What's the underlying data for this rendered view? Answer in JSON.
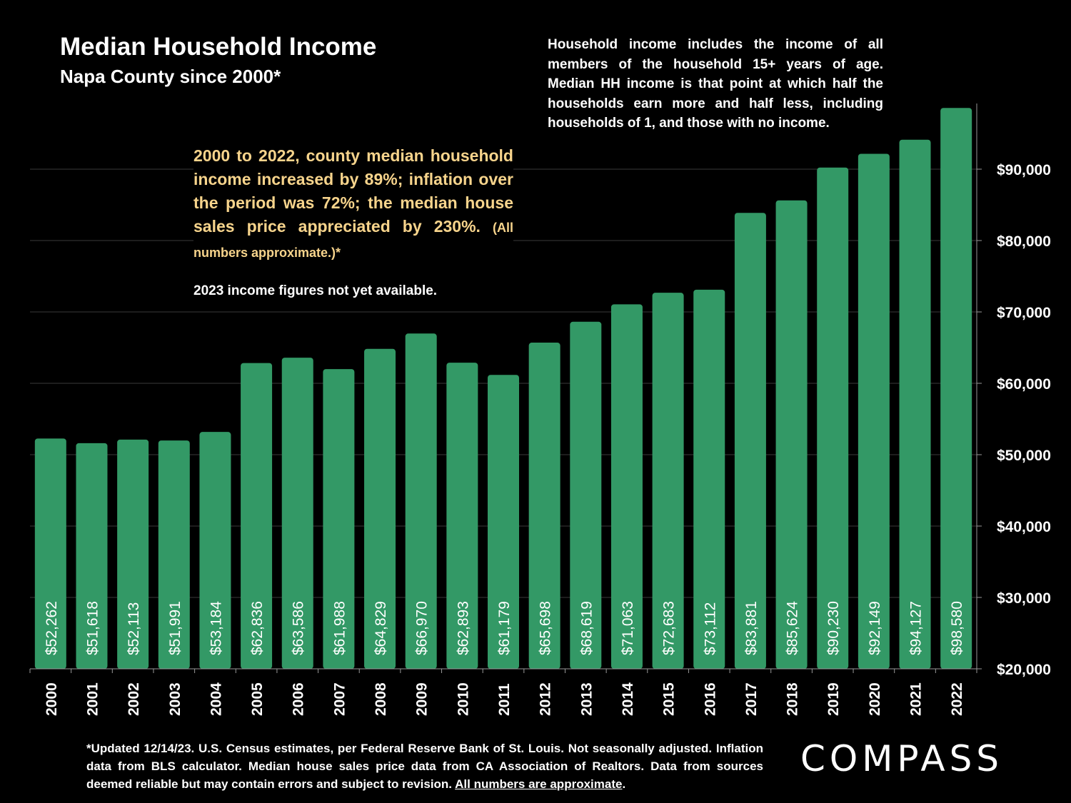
{
  "chart_data": {
    "type": "bar",
    "title": "Median Household Income",
    "subtitle": "Napa County since 2000*",
    "categories": [
      "2000",
      "2001",
      "2002",
      "2003",
      "2004",
      "2005",
      "2006",
      "2007",
      "2008",
      "2009",
      "2010",
      "2011",
      "2012",
      "2013",
      "2014",
      "2015",
      "2016",
      "2017",
      "2018",
      "2019",
      "2020",
      "2021",
      "2022"
    ],
    "values": [
      52262,
      51618,
      52113,
      51991,
      53184,
      62836,
      63586,
      61988,
      64829,
      66970,
      62893,
      61179,
      65698,
      68619,
      71063,
      72683,
      73112,
      83881,
      85624,
      90230,
      92149,
      94127,
      98580
    ],
    "data_labels": [
      "$52,262",
      "$51,618",
      "$52,113",
      "$51,991",
      "$53,184",
      "$62,836",
      "$63,586",
      "$61,988",
      "$64,829",
      "$66,970",
      "$62,893",
      "$61,179",
      "$65,698",
      "$68,619",
      "$71,063",
      "$72,683",
      "$73,112",
      "$83,881",
      "$85,624",
      "$90,230",
      "$92,149",
      "$94,127",
      "$98,580"
    ],
    "y_ticks": [
      20000,
      30000,
      40000,
      50000,
      60000,
      70000,
      80000,
      90000
    ],
    "y_tick_labels": [
      "$20,000",
      "$30,000",
      "$40,000",
      "$50,000",
      "$60,000",
      "$70,000",
      "$80,000",
      "$90,000"
    ],
    "ylim": [
      20000,
      99000
    ],
    "xlabel": "",
    "ylabel": "",
    "y_axis_side": "right",
    "grid": true,
    "bar_color": "#339966"
  },
  "definition": "Household income includes the income of all members of the household 15+ years of age. Median HH income is that point at which half the households earn more and half less, including households of 1, and those with no income.",
  "highlight": {
    "main": "2000 to 2022, county median household income increased by 89%; inflation over the period was 72%; the median house sales price appreciated by 230%.",
    "note": "(All numbers approximate.)*"
  },
  "availability_note": "2023 income figures not yet available.",
  "footnote": {
    "text": "*Updated 12/14/23. U.S. Census estimates, per Federal Reserve Bank of St. Louis. Not seasonally adjusted. Inflation data from BLS calculator. Median house sales price data from CA Association of Realtors. Data from sources deemed reliable but may contain errors and subject to revision.",
    "underlined": "All numbers are approximate",
    "end": "."
  },
  "logo": "COMPASS",
  "colors": {
    "background": "#000000",
    "bar": "#339966",
    "highlight_text": "#f7d48c",
    "grid": "#3a3a3a"
  }
}
